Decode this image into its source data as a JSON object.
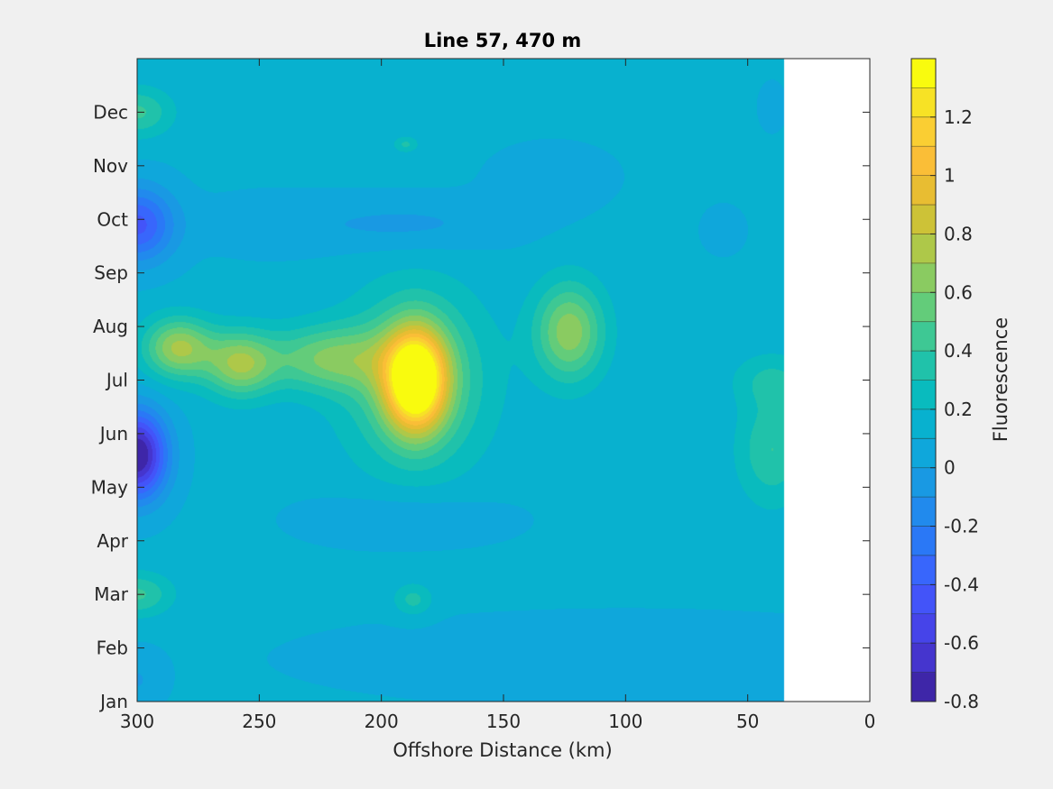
{
  "chart_data": {
    "type": "heatmap",
    "subtype": "filled-contour",
    "title": "Line 57, 470 m",
    "xlabel": "Offshore Distance (km)",
    "ylabel": "",
    "x_direction": "reversed",
    "xlim": [
      0,
      300
    ],
    "xticks": [
      300,
      250,
      200,
      150,
      100,
      50,
      0
    ],
    "xtick_labels": [
      "300",
      "250",
      "200",
      "150",
      "100",
      "50",
      "0"
    ],
    "ylim": [
      1,
      13
    ],
    "yticks": [
      1,
      2,
      3,
      4,
      5,
      6,
      7,
      8,
      9,
      10,
      11,
      12
    ],
    "ytick_labels": [
      "Jan",
      "Feb",
      "Mar",
      "Apr",
      "May",
      "Jun",
      "Jul",
      "Aug",
      "Sep",
      "Oct",
      "Nov",
      "Dec"
    ],
    "data_coverage_x_range": [
      35,
      300
    ],
    "background_level": 0.12,
    "features": [
      {
        "x": 186,
        "month": 7.0,
        "value": 1.3,
        "width_km": 12,
        "height_months": 0.9
      },
      {
        "x": 186,
        "month": 7.0,
        "value": 0.45,
        "width_km": 28,
        "height_months": 1.6
      },
      {
        "x": 283,
        "month": 7.6,
        "value": 0.6,
        "width_km": 14,
        "height_months": 0.55
      },
      {
        "x": 258,
        "month": 7.3,
        "value": 0.55,
        "width_km": 14,
        "height_months": 0.6
      },
      {
        "x": 222,
        "month": 7.4,
        "value": 0.45,
        "width_km": 26,
        "height_months": 0.6
      },
      {
        "x": 123,
        "month": 7.9,
        "value": 0.55,
        "width_km": 14,
        "height_months": 0.9
      },
      {
        "x": 300,
        "month": 5.6,
        "value": -0.95,
        "width_km": 12,
        "height_months": 0.8
      },
      {
        "x": 300,
        "month": 9.9,
        "value": -0.55,
        "width_km": 15,
        "height_months": 0.7
      },
      {
        "x": 300,
        "month": 12.0,
        "value": 0.3,
        "width_km": 14,
        "height_months": 0.45
      },
      {
        "x": 300,
        "month": 3.0,
        "value": 0.3,
        "width_km": 14,
        "height_months": 0.4
      },
      {
        "x": 300,
        "month": 1.4,
        "value": -0.12,
        "width_km": 10,
        "height_months": 0.5
      },
      {
        "x": 40,
        "month": 5.7,
        "value": 0.28,
        "width_km": 14,
        "height_months": 1.0
      },
      {
        "x": 40,
        "month": 7.0,
        "value": 0.18,
        "width_km": 16,
        "height_months": 0.5
      },
      {
        "x": 190,
        "month": 9.9,
        "value": -0.15,
        "width_km": 45,
        "height_months": 0.5
      },
      {
        "x": 130,
        "month": 10.8,
        "value": -0.08,
        "width_km": 25,
        "height_months": 0.6
      },
      {
        "x": 60,
        "month": 9.8,
        "value": -0.1,
        "width_km": 8,
        "height_months": 0.4
      },
      {
        "x": 190,
        "month": 4.4,
        "value": -0.12,
        "width_km": 40,
        "height_months": 0.5
      },
      {
        "x": 100,
        "month": 1.8,
        "value": -0.06,
        "width_km": 140,
        "height_months": 0.9
      },
      {
        "x": 187,
        "month": 2.9,
        "value": 0.22,
        "width_km": 8,
        "height_months": 0.3
      },
      {
        "x": 190,
        "month": 11.4,
        "value": 0.2,
        "width_km": 5,
        "height_months": 0.15
      },
      {
        "x": 40,
        "month": 12.1,
        "value": -0.1,
        "width_km": 5,
        "height_months": 0.4
      },
      {
        "x": 250,
        "month": 9.9,
        "value": -0.06,
        "width_km": 30,
        "height_months": 0.6
      }
    ],
    "colorbar": {
      "label": "Fluorescence",
      "range": [
        -0.8,
        1.4
      ],
      "levels": [
        -0.8,
        -0.7,
        -0.6,
        -0.5,
        -0.4,
        -0.3,
        -0.2,
        -0.1,
        0,
        0.1,
        0.2,
        0.3,
        0.4,
        0.5,
        0.6,
        0.7,
        0.8,
        0.9,
        1.0,
        1.1,
        1.2,
        1.3,
        1.4
      ],
      "tick_values": [
        -0.8,
        -0.6,
        -0.4,
        -0.2,
        0,
        0.2,
        0.4,
        0.6,
        0.8,
        1,
        1.2
      ],
      "tick_labels": [
        "-0.8",
        "-0.6",
        "-0.4",
        "-0.2",
        "0",
        "0.2",
        "0.4",
        "0.6",
        "0.8",
        "1",
        "1.2"
      ],
      "colormap": "parula"
    },
    "colors": {
      "axes_bg": "#ffffff",
      "figure_bg": "#f0f0f0",
      "axis_line": "#262626"
    }
  }
}
